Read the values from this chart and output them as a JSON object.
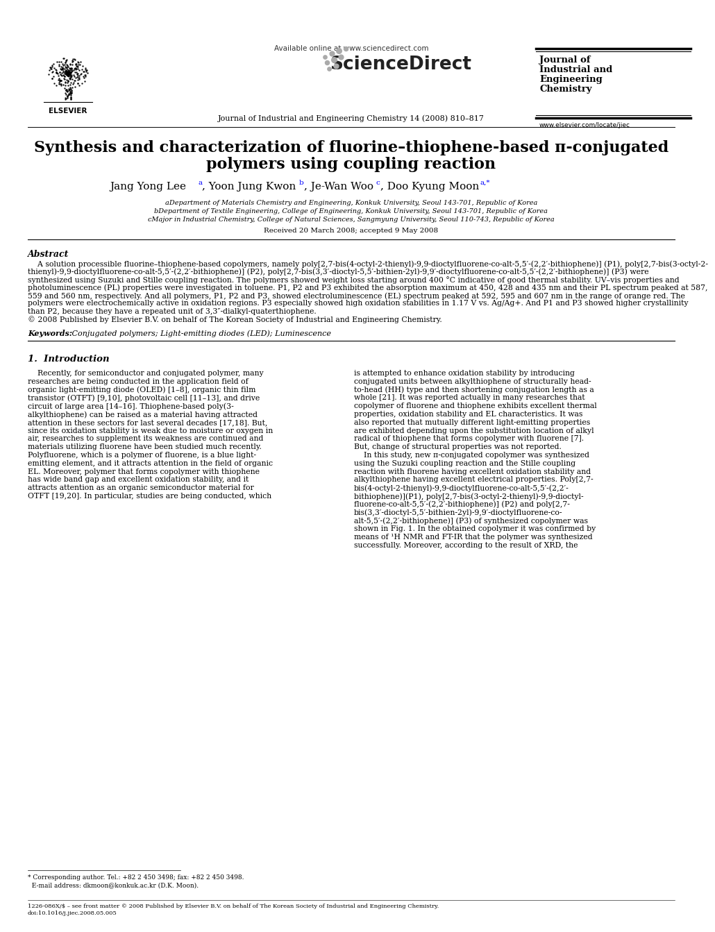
{
  "bg_color": "#ffffff",
  "title_line1": "Synthesis and characterization of fluorine–thiophene-based π-conjugated",
  "title_line2": "polymers using coupling reaction",
  "affil_a": "aDepartment of Materials Chemistry and Engineering, Konkuk University, Seoul 143-701, Republic of Korea",
  "affil_b": "bDepartment of Textile Engineering, College of Engineering, Konkuk University, Seoul 143-701, Republic of Korea",
  "affil_c": "cMajor in Industrial Chemistry, College of Natural Sciences, Sangmyung University, Seoul 110-743, Republic of Korea",
  "received": "Received 20 March 2008; accepted 9 May 2008",
  "journal_header": "Journal of Industrial and Engineering Chemistry 14 (2008) 810–817",
  "available_online": "Available online at www.sciencedirect.com",
  "journal_url": "www.elsevier.com/locate/jiec",
  "abstract_title": "Abstract",
  "keywords_label": "Keywords:",
  "keywords_text": " Conjugated polymers; Light-emitting diodes (LED); Luminescence",
  "section1_title": "1.  Introduction",
  "col1_lines": [
    "    Recently, for semiconductor and conjugated polymer, many",
    "researches are being conducted in the application field of",
    "organic light-emitting diode (OLED) [1–8], organic thin film",
    "transistor (OTFT) [9,10], photovoltaic cell [11–13], and drive",
    "circuit of large area [14–16]. Thiophene-based poly(3-",
    "alkylthiophene) can be raised as a material having attracted",
    "attention in these sectors for last several decades [17,18]. But,",
    "since its oxidation stability is weak due to moisture or oxygen in",
    "air, researches to supplement its weakness are continued and",
    "materials utilizing fluorene have been studied much recently.",
    "Polyfluorene, which is a polymer of fluorene, is a blue light-",
    "emitting element, and it attracts attention in the field of organic",
    "EL. Moreover, polymer that forms copolymer with thiophene",
    "has wide band gap and excellent oxidation stability, and it",
    "attracts attention as an organic semiconductor material for",
    "OTFT [19,20]. In particular, studies are being conducted, which"
  ],
  "col2_lines": [
    "is attempted to enhance oxidation stability by introducing",
    "conjugated units between alkylthiophene of structurally head-",
    "to-head (HH) type and then shortening conjugation length as a",
    "whole [21]. It was reported actually in many researches that",
    "copolymer of fluorene and thiophene exhibits excellent thermal",
    "properties, oxidation stability and EL characteristics. It was",
    "also reported that mutually different light-emitting properties",
    "are exhibited depending upon the substitution location of alkyl",
    "radical of thiophene that forms copolymer with fluorene [7].",
    "But, change of structural properties was not reported.",
    "    In this study, new π-conjugated copolymer was synthesized",
    "using the Suzuki coupling reaction and the Stille coupling",
    "reaction with fluorene having excellent oxidation stability and",
    "alkylthiophene having excellent electrical properties. Poly[2,7-",
    "bis(4-octyl-2-thienyl)-9,9-dioctylfluorene-co-alt-5,5′-(2,2′-",
    "bithiophene)](P1), poly[2,7-bis(3-octyl-2-thienyl)-9,9-dioctyl-",
    "fluorene-co-alt-5,5′-(2,2′-bithiophene)] (P2) and poly[2,7-",
    "bis(3,3′-dioctyl-5,5′-bithien-2yl)-9,9′-dioctylfluorene-co-",
    "alt-5,5′-(2,2′-bithiophene)] (P3) of synthesized copolymer was",
    "shown in Fig. 1. In the obtained copolymer it was confirmed by",
    "means of ¹H NMR and FT-IR that the polymer was synthesized",
    "successfully. Moreover, according to the result of XRD, the"
  ],
  "abstract_lines": [
    "    A solution processible fluorine–thiophene-based copolymers, namely poly[2,7-bis(4-octyl-2-thienyl)-9,9-dioctylfluorene-co-alt-5,5′-(2,2′-bithiophene)] (P1), poly[2,7-bis(3-octyl-2-",
    "thienyl)-9,9-dioctylfluorene-co-alt-5,5′-(2,2′-bithiophene)] (P2), poly[2,7-bis(3,3′-dioctyl-5,5′-bithien-2yl)-9,9′-dioctylfluorene-co-alt-5,5′-(2,2′-bithiophene)] (P3) were",
    "synthesized using Suzuki and Stille coupling reaction. The polymers showed weight loss starting around 400 °C indicative of good thermal stability. UV–vis properties and",
    "photoluminescence (PL) properties were investigated in toluene. P1, P2 and P3 exhibited the absorption maximum at 450, 428 and 435 nm and their PL spectrum peaked at 587,",
    "559 and 560 nm, respectively. And all polymers, P1, P2 and P3, showed electroluminescence (EL) spectrum peaked at 592, 595 and 607 nm in the range of orange red. The",
    "polymers were electrochemically active in oxidation regions. P3 especially showed high oxidation stabilities in 1.17 V vs. Ag/Ag+. And P1 and P3 showed higher crystallinity",
    "than P2, because they have a repeated unit of 3,3″-dialkyl-quaterthiophene.",
    "© 2008 Published by Elsevier B.V. on behalf of The Korean Society of Industrial and Engineering Chemistry."
  ],
  "footnote1": "* Corresponding author. Tel.: +82 2 450 3498; fax: +82 2 450 3498.",
  "footnote2": "  E-mail address: dkmoon@konkuk.ac.kr (D.K. Moon).",
  "footer1": "1226-086X/$ – see front matter © 2008 Published by Elsevier B.V. on behalf of The Korean Society of Industrial and Engineering Chemistry.",
  "footer2": "doi:10.1016/j.jiec.2008.05.005"
}
